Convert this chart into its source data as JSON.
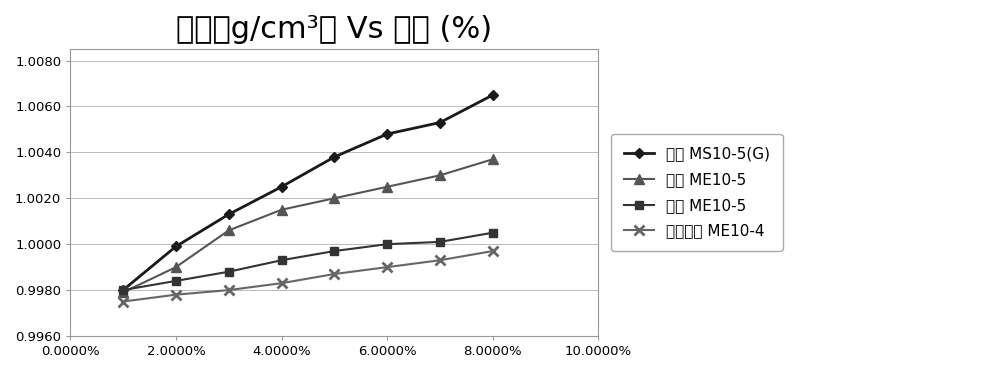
{
  "title": "密度（g/cm³） Vs 浓度 (%)",
  "title_fontsize": 22,
  "series": [
    {
      "label": "极索 MS10-5(G)",
      "x": [
        0.01,
        0.02,
        0.03,
        0.04,
        0.05,
        0.06,
        0.07,
        0.08
      ],
      "y": [
        0.998,
        0.9999,
        1.0013,
        1.0025,
        1.0038,
        1.0048,
        1.0053,
        1.0065
      ],
      "color": "#1a1a1a",
      "marker": "D",
      "linewidth": 2.0,
      "markersize": 5
    },
    {
      "label": "奎克 ME10-5",
      "x": [
        0.01,
        0.02,
        0.03,
        0.04,
        0.05,
        0.06,
        0.07,
        0.08
      ],
      "y": [
        0.9979,
        0.999,
        1.0006,
        1.0015,
        1.002,
        1.0025,
        1.003,
        1.0037
      ],
      "color": "#555555",
      "marker": "^",
      "linewidth": 1.5,
      "markersize": 7
    },
    {
      "label": "福斯 ME10-5",
      "x": [
        0.01,
        0.02,
        0.03,
        0.04,
        0.05,
        0.06,
        0.07,
        0.08
      ],
      "y": [
        0.998,
        0.9984,
        0.9988,
        0.9993,
        0.9997,
        1.0,
        1.0001,
        1.0005
      ],
      "color": "#333333",
      "marker": "s",
      "linewidth": 1.5,
      "markersize": 6
    },
    {
      "label": "特普朗克 ME10-4",
      "x": [
        0.01,
        0.02,
        0.03,
        0.04,
        0.05,
        0.06,
        0.07,
        0.08
      ],
      "y": [
        0.9975,
        0.9978,
        0.998,
        0.9983,
        0.9987,
        0.999,
        0.9993,
        0.9997
      ],
      "color": "#666666",
      "marker": "x",
      "linewidth": 1.5,
      "markersize": 7,
      "markeredgewidth": 2.0
    }
  ],
  "xlim": [
    0.0,
    0.1
  ],
  "ylim": [
    0.996,
    1.0085
  ],
  "xticks": [
    0.0,
    0.02,
    0.04,
    0.06,
    0.08,
    0.1
  ],
  "xtick_labels": [
    "0.0000%",
    "2.0000%",
    "4.0000%",
    "6.0000%",
    "8.0000%",
    "10.0000%"
  ],
  "yticks": [
    0.996,
    0.998,
    1.0,
    1.002,
    1.004,
    1.006,
    1.008
  ],
  "ytick_labels": [
    "0.9960",
    "0.9980",
    "1.0000",
    "1.0020",
    "1.0040",
    "1.0060",
    "1.0080"
  ],
  "background_color": "#ffffff",
  "plot_bg_color": "#ffffff",
  "grid_color": "#bbbbbb",
  "legend_fontsize": 11,
  "tick_fontsize": 9.5
}
